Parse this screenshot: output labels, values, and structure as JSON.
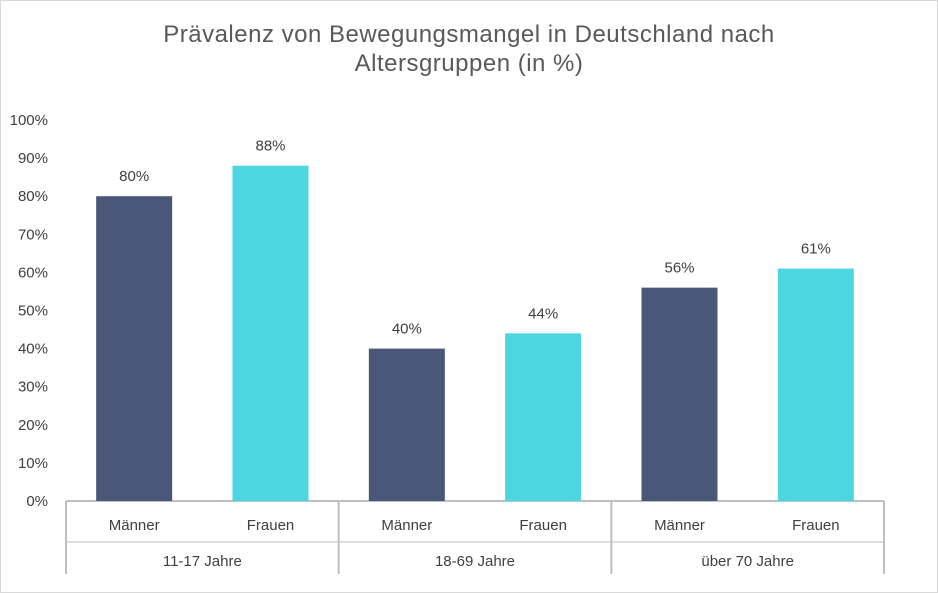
{
  "chart_data": {
    "type": "bar",
    "title": "Prävalenz von Bewegungsmangel in Deutschland nach\nAltersgruppen (in %)",
    "groups": [
      {
        "label": "11-17 Jahre",
        "bars": [
          {
            "category": "Männer",
            "value": 80,
            "label": "80%"
          },
          {
            "category": "Frauen",
            "value": 88,
            "label": "88%"
          }
        ]
      },
      {
        "label": "18-69 Jahre",
        "bars": [
          {
            "category": "Männer",
            "value": 40,
            "label": "40%"
          },
          {
            "category": "Frauen",
            "value": 44,
            "label": "44%"
          }
        ]
      },
      {
        "label": "über 70 Jahre",
        "bars": [
          {
            "category": "Männer",
            "value": 56,
            "label": "56%"
          },
          {
            "category": "Frauen",
            "value": 61,
            "label": "61%"
          }
        ]
      }
    ],
    "ylim": [
      0,
      100
    ],
    "yticks": [
      "0%",
      "10%",
      "20%",
      "30%",
      "40%",
      "50%",
      "60%",
      "70%",
      "80%",
      "90%",
      "100%"
    ],
    "colors": {
      "Männer": "#4a5779",
      "Frauen": "#4bd6e0"
    },
    "grid": false,
    "legend": "none"
  }
}
